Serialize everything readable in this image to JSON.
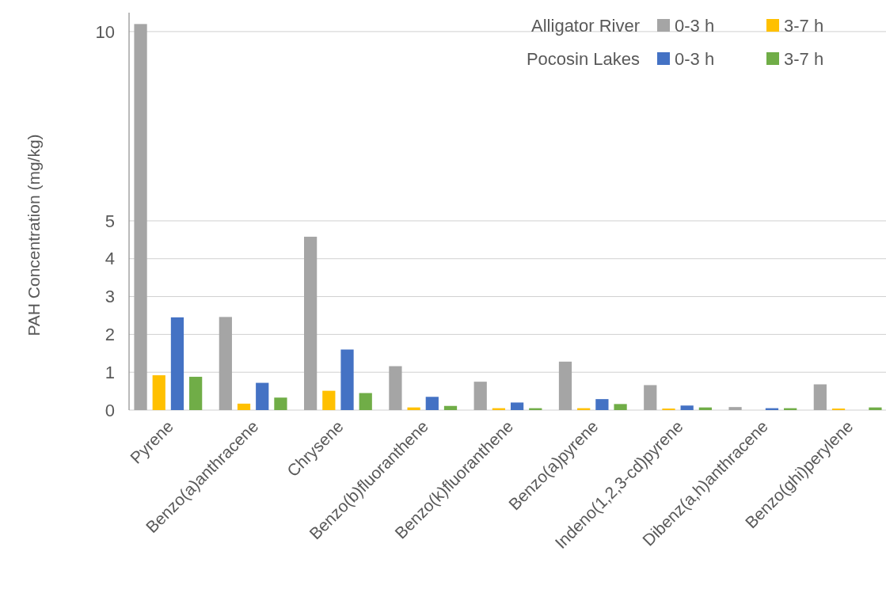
{
  "chart_data": {
    "type": "bar",
    "ylabel": "PAH Concentration (mg/kg)",
    "categories": [
      "Pyrene",
      "Benzo(a)anthracene",
      "Chrysene",
      "Benzo(b)fluoranthene",
      "Benzo(k)fluoranthene",
      "Benzo(a)pyrene",
      "Indeno(1,2,3-cd)pyrene",
      "Dibenz(a,h)anthracene",
      "Benzo(ghi)perylene"
    ],
    "series": [
      {
        "name": "0-3 h",
        "color": "#a5a5a5",
        "values": [
          10.2,
          2.46,
          4.58,
          1.16,
          0.75,
          1.28,
          0.66,
          0.08,
          0.68
        ]
      },
      {
        "name": "3-7 h",
        "color": "#ffc000",
        "values": [
          0.92,
          0.17,
          0.51,
          0.07,
          0.05,
          0.05,
          0.04,
          0,
          0.04
        ]
      },
      {
        "name": "0-3 h",
        "color": "#4472c4",
        "values": [
          2.45,
          0.72,
          1.6,
          0.35,
          0.2,
          0.29,
          0.12,
          0.05,
          0
        ]
      },
      {
        "name": "3-7 h",
        "color": "#70ad47",
        "values": [
          0.88,
          0.33,
          0.45,
          0.11,
          0.05,
          0.16,
          0.07,
          0.05,
          0.07
        ]
      }
    ],
    "annotations": [
      "Alligator River",
      "Pocosin Lakes"
    ],
    "ylim": [
      0,
      10.5
    ],
    "yticks": [
      0,
      1,
      2,
      3,
      4,
      5,
      10
    ],
    "grid": "y",
    "legend": "top right"
  }
}
